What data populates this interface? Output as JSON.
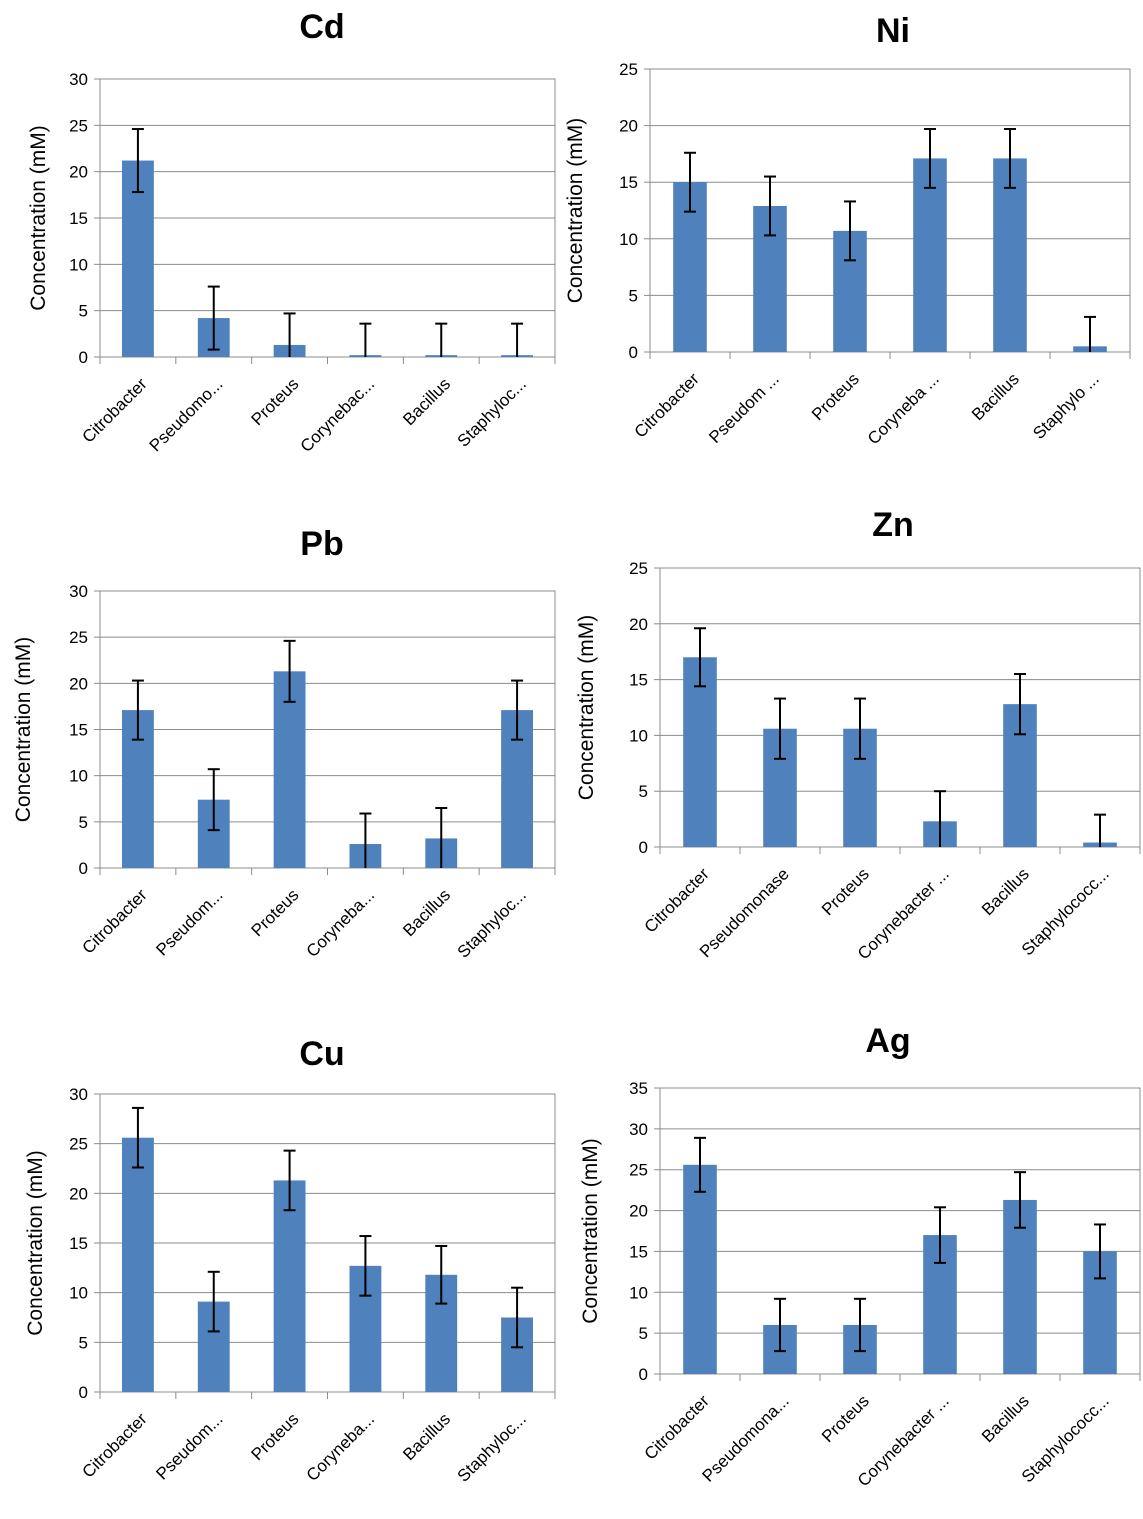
{
  "chart_data": [
    {
      "type": "bar",
      "title": "Cd",
      "ylabel": "Concentration (mM)",
      "xlabel": "",
      "categories": [
        "Citrobacter",
        "Pseudomo...",
        "Proteus",
        "Corynebac...",
        "Bacillus",
        "Staphyloc..."
      ],
      "values": [
        21.2,
        4.2,
        1.3,
        0.2,
        0.2,
        0.2
      ],
      "error": [
        3.4,
        3.4,
        3.4,
        3.4,
        3.4,
        3.4
      ],
      "ylim": [
        0,
        30
      ],
      "yticks": [
        0,
        5,
        10,
        15,
        20,
        25,
        30
      ],
      "grid": true,
      "bar_color": "#4F81BD"
    },
    {
      "type": "bar",
      "title": "Ni",
      "ylabel": "Concentration (mM)",
      "xlabel": "",
      "categories": [
        "Citrobacter",
        "Pseudom ...",
        "Proteus",
        "Coryneba ...",
        "Bacillus",
        "Staphylo ..."
      ],
      "values": [
        15.0,
        12.9,
        10.7,
        17.1,
        17.1,
        0.5
      ],
      "error": [
        2.6,
        2.6,
        2.6,
        2.6,
        2.6,
        2.6
      ],
      "ylim": [
        0,
        25
      ],
      "yticks": [
        0,
        5,
        10,
        15,
        20,
        25
      ],
      "grid": true,
      "bar_color": "#4F81BD"
    },
    {
      "type": "bar",
      "title": "Pb",
      "ylabel": "Concentration (mM)",
      "xlabel": "",
      "categories": [
        "Citrobacter",
        "Pseudom...",
        "Proteus",
        "Coryneba...",
        "Bacillus",
        "Staphyloc..."
      ],
      "values": [
        17.1,
        7.4,
        21.3,
        2.6,
        3.2,
        17.1
      ],
      "error": [
        3.2,
        3.3,
        3.3,
        3.3,
        3.3,
        3.2
      ],
      "ylim": [
        0,
        30
      ],
      "yticks": [
        0,
        5,
        10,
        15,
        20,
        25,
        30
      ],
      "grid": true,
      "bar_color": "#4F81BD"
    },
    {
      "type": "bar",
      "title": "Zn",
      "ylabel": "Concentration (mM)",
      "xlabel": "",
      "categories": [
        "Citrobacter",
        "Pseudomonase",
        "Proteus",
        "Corynebacter ...",
        "Bacillus",
        "Staphylococc..."
      ],
      "values": [
        17.0,
        10.6,
        10.6,
        2.3,
        12.8,
        0.4
      ],
      "error": [
        2.6,
        2.7,
        2.7,
        2.7,
        2.7,
        2.5
      ],
      "ylim": [
        0,
        25
      ],
      "yticks": [
        0,
        5,
        10,
        15,
        20,
        25
      ],
      "grid": true,
      "bar_color": "#4F81BD"
    },
    {
      "type": "bar",
      "title": "Cu",
      "ylabel": "Concentration (mM)",
      "xlabel": "",
      "categories": [
        "Citrobacter",
        "Pseudom...",
        "Proteus",
        "Coryneba...",
        "Bacillus",
        "Staphyloc..."
      ],
      "values": [
        25.6,
        9.1,
        21.3,
        12.7,
        11.8,
        7.5
      ],
      "error": [
        3.0,
        3.0,
        3.0,
        3.0,
        2.9,
        3.0
      ],
      "ylim": [
        0,
        30
      ],
      "yticks": [
        0,
        5,
        10,
        15,
        20,
        25,
        30
      ],
      "grid": true,
      "bar_color": "#4F81BD"
    },
    {
      "type": "bar",
      "title": "Ag",
      "ylabel": "Concentration (mM)",
      "xlabel": "",
      "categories": [
        "Citrobacter",
        "Pseudomona...",
        "Proteus",
        "Corynebacter ...",
        "Bacillus",
        "Staphylococc..."
      ],
      "values": [
        25.6,
        6.0,
        6.0,
        17.0,
        21.3,
        15.0
      ],
      "error": [
        3.3,
        3.2,
        3.2,
        3.4,
        3.4,
        3.3
      ],
      "ylim": [
        0,
        35
      ],
      "yticks": [
        0,
        5,
        10,
        15,
        20,
        25,
        30,
        35
      ],
      "grid": true,
      "bar_color": "#4F81BD"
    }
  ]
}
